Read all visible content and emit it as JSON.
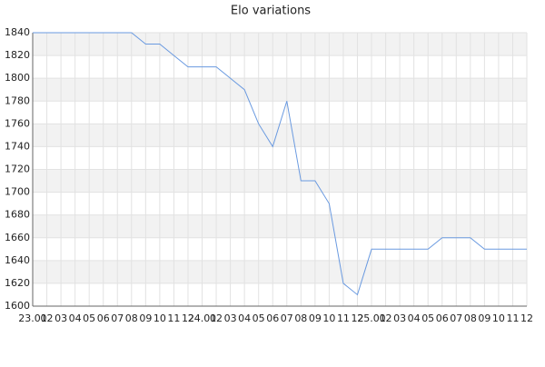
{
  "chart_data": {
    "type": "line",
    "title": "Elo variations",
    "categories": [
      "23.01",
      "02",
      "03",
      "04",
      "05",
      "06",
      "07",
      "08",
      "09",
      "10",
      "11",
      "12",
      "24.01",
      "02",
      "03",
      "04",
      "05",
      "06",
      "07",
      "08",
      "09",
      "10",
      "11",
      "12",
      "25.01",
      "02",
      "03",
      "04",
      "05",
      "06",
      "07",
      "08",
      "09",
      "10",
      "11",
      "12"
    ],
    "series": [
      {
        "name": "Elo",
        "color": "#6a9ae0",
        "values": [
          1840,
          1840,
          1840,
          1840,
          1840,
          1840,
          1840,
          1840,
          1830,
          1830,
          1820,
          1810,
          1810,
          1810,
          1800,
          1790,
          1760,
          1740,
          1780,
          1710,
          1710,
          1690,
          1620,
          1610,
          1650,
          1650,
          1650,
          1650,
          1650,
          1660,
          1660,
          1660,
          1650,
          1650,
          1650,
          1650
        ]
      }
    ],
    "ylim": [
      1600,
      1840
    ],
    "yticks": [
      1600,
      1620,
      1640,
      1660,
      1680,
      1700,
      1720,
      1740,
      1760,
      1780,
      1800,
      1820,
      1840
    ],
    "grid": true
  }
}
